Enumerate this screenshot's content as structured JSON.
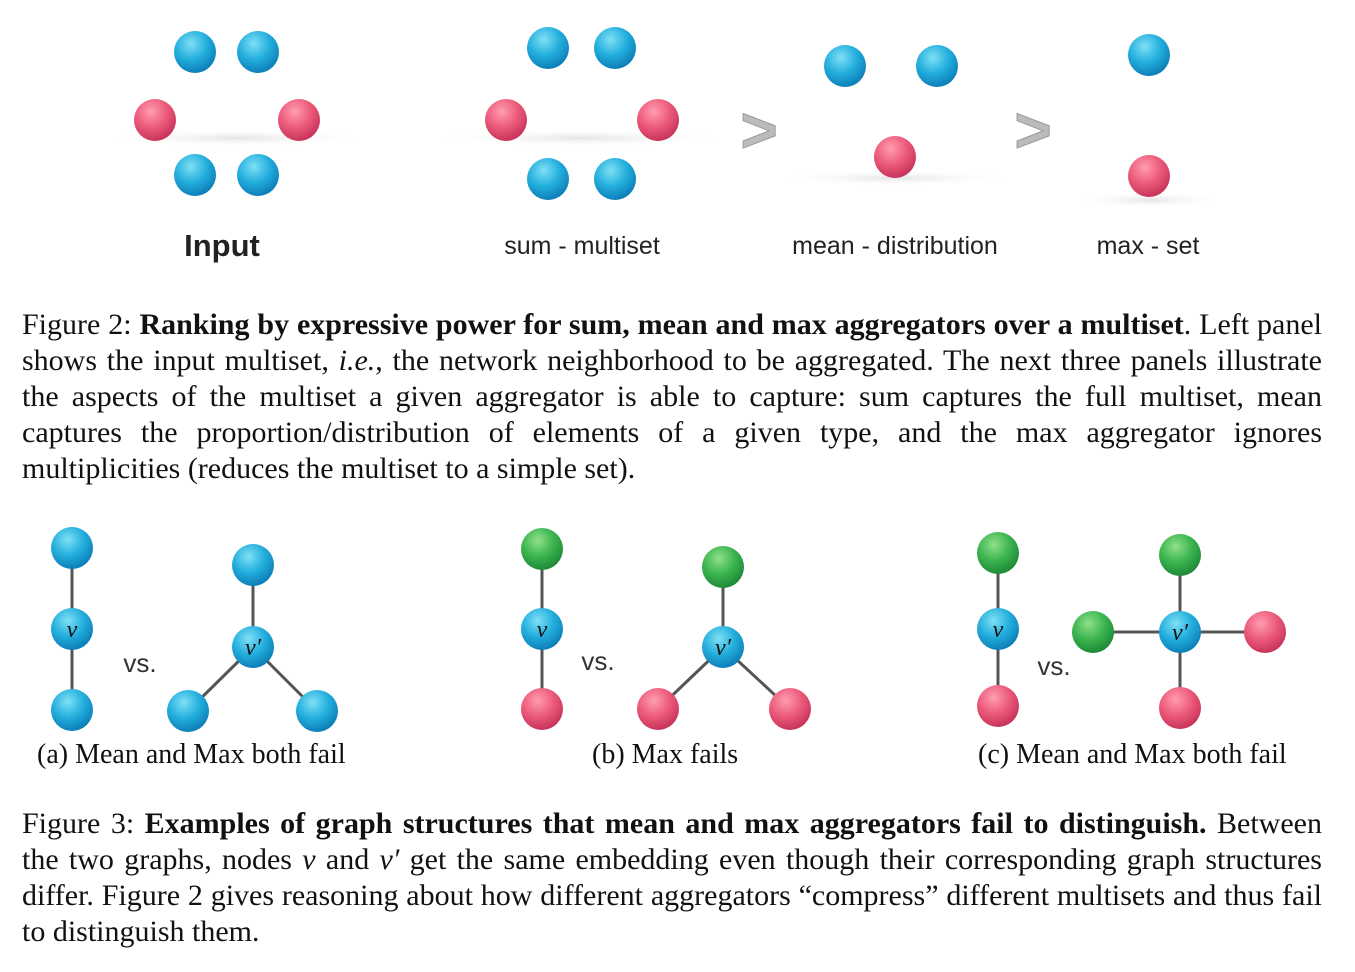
{
  "figure2": {
    "panels": {
      "input": "Input",
      "sum": "sum - multiset",
      "mean": "mean - distribution",
      "max": "max - set"
    },
    "ranking_symbol": ">",
    "caption": {
      "prefix": "Figure 2: ",
      "bold": "Ranking by expressive power for sum, mean and max aggregators over a multiset",
      "period": ".",
      "body_1": " Left panel shows the input multiset, ",
      "ie": "i.e.",
      "body_2": ", the network neighborhood to be aggregated. The next three panels illustrate the aspects of the multiset a given aggregator is able to capture: sum captures the full multiset, mean captures the proportion/distribution of elements of a given type, and the max aggregator ignores multiplicities (reduces the multiset to a simple set)."
    }
  },
  "figure3": {
    "vs_label": "vs.",
    "node_v": "v",
    "node_vprime": "v′",
    "subcaptions": {
      "a": "(a) Mean and Max both fail",
      "b": "(b) Max fails",
      "c": "(c) Mean and Max both fail"
    },
    "caption": {
      "prefix": "Figure 3: ",
      "bold": "Examples of graph structures that mean and max aggregators fail to distinguish.",
      "body_1": " Between the two graphs, nodes ",
      "v": "v",
      "and": " and ",
      "vprime": "v′",
      "body_2": " get the same embedding even though their corresponding graph structures differ. Figure 2 gives reasoning about how different aggregators “compress” different multisets and thus fail to distinguish them."
    }
  },
  "colors": {
    "blue": "#1fa3d6",
    "pink": "#e8506f",
    "green": "#2eaa4a",
    "edge": "#555555",
    "arrow": "#bbbbbb"
  }
}
